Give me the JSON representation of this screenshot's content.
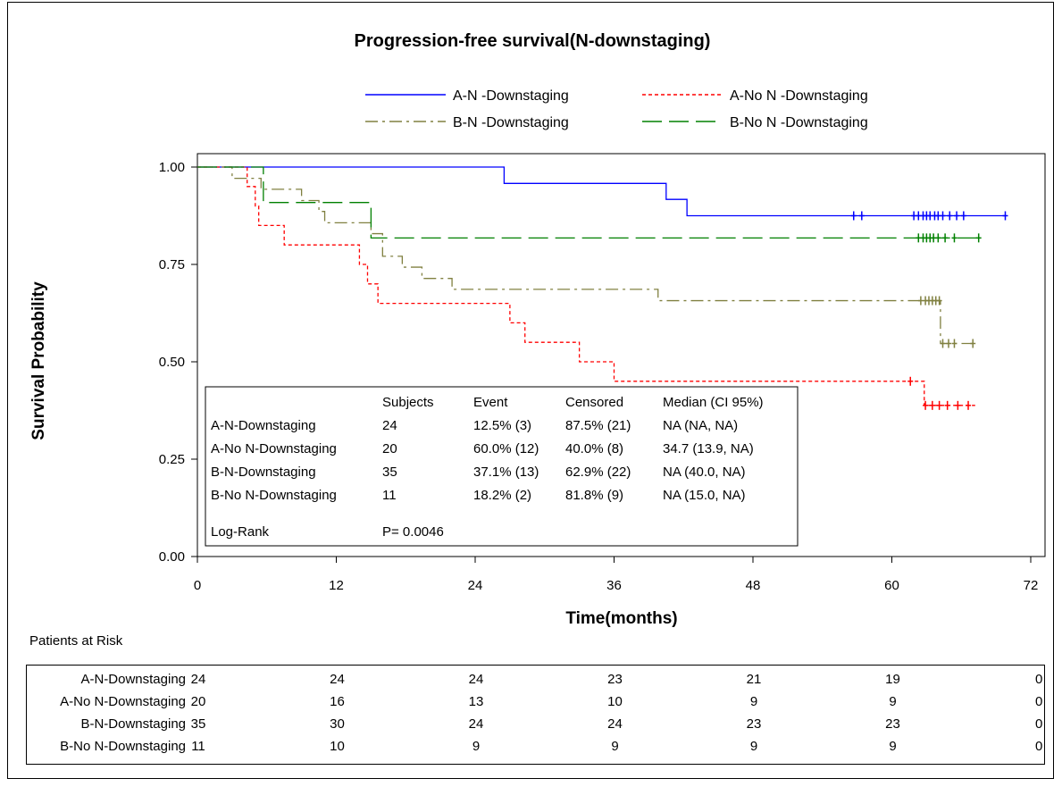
{
  "chart_data": {
    "type": "line",
    "title": "Progression-free survival(N-downstaging)",
    "xlabel": "Time(months)",
    "ylabel": "Survival Probability",
    "xlim": [
      0,
      72
    ],
    "ylim": [
      0,
      1
    ],
    "x_ticks": [
      "0",
      "12",
      "24",
      "36",
      "48",
      "60",
      "72"
    ],
    "y_ticks": [
      "0.00",
      "0.25",
      "0.50",
      "0.75",
      "1.00"
    ],
    "grid": false,
    "legend_position": "top",
    "series": [
      {
        "name": "A-N -Downstaging",
        "color": "#0000ff",
        "dash": "solid",
        "steps": [
          [
            0,
            1.0
          ],
          [
            26.5,
            0.958
          ],
          [
            40.5,
            0.917
          ],
          [
            42.3,
            0.875
          ]
        ],
        "end": 69.8,
        "censored": [
          [
            56.7,
            0.875
          ],
          [
            57.4,
            0.875
          ],
          [
            61.9,
            0.875
          ],
          [
            62.3,
            0.875
          ],
          [
            62.7,
            0.875
          ],
          [
            63.0,
            0.875
          ],
          [
            63.3,
            0.875
          ],
          [
            63.7,
            0.875
          ],
          [
            64.0,
            0.875
          ],
          [
            64.4,
            0.875
          ],
          [
            65.0,
            0.875
          ],
          [
            65.6,
            0.875
          ],
          [
            66.2,
            0.875
          ],
          [
            69.8,
            0.875
          ]
        ]
      },
      {
        "name": "A-No N -Downstaging",
        "color": "#ff0000",
        "dash": "short",
        "steps": [
          [
            0,
            1.0
          ],
          [
            4.3,
            0.95
          ],
          [
            5.0,
            0.9
          ],
          [
            5.3,
            0.85
          ],
          [
            7.5,
            0.8
          ],
          [
            14.0,
            0.75
          ],
          [
            14.7,
            0.7
          ],
          [
            15.6,
            0.65
          ],
          [
            27.0,
            0.6
          ],
          [
            28.3,
            0.55
          ],
          [
            33.0,
            0.5
          ],
          [
            36.0,
            0.45
          ],
          [
            62.8,
            0.388
          ]
        ],
        "end": 67.2,
        "censored": [
          [
            61.6,
            0.45
          ],
          [
            62.9,
            0.388
          ],
          [
            63.5,
            0.388
          ],
          [
            64.1,
            0.388
          ],
          [
            64.8,
            0.388
          ],
          [
            65.7,
            0.388
          ],
          [
            66.6,
            0.388
          ]
        ]
      },
      {
        "name": "B-N -Downstaging",
        "color": "#808040",
        "dash": "dashdot",
        "steps": [
          [
            0,
            1.0
          ],
          [
            3.0,
            0.971
          ],
          [
            5.5,
            0.943
          ],
          [
            9.0,
            0.914
          ],
          [
            10.5,
            0.886
          ],
          [
            11.0,
            0.857
          ],
          [
            15.0,
            0.829
          ],
          [
            16.0,
            0.771
          ],
          [
            17.7,
            0.743
          ],
          [
            19.4,
            0.714
          ],
          [
            22.0,
            0.686
          ],
          [
            39.8,
            0.657
          ],
          [
            64.2,
            0.547
          ]
        ],
        "end": 67.0,
        "censored": [
          [
            62.5,
            0.657
          ],
          [
            62.9,
            0.657
          ],
          [
            63.2,
            0.657
          ],
          [
            63.5,
            0.657
          ],
          [
            63.8,
            0.657
          ],
          [
            64.1,
            0.657
          ],
          [
            64.4,
            0.547
          ],
          [
            64.9,
            0.547
          ],
          [
            65.4,
            0.547
          ],
          [
            67.0,
            0.547
          ]
        ]
      },
      {
        "name": "B-No N -Downstaging",
        "color": "#008000",
        "dash": "long",
        "steps": [
          [
            0,
            1.0
          ],
          [
            5.7,
            0.909
          ],
          [
            15.0,
            0.818
          ]
        ],
        "end": 67.5,
        "censored": [
          [
            62.3,
            0.818
          ],
          [
            62.7,
            0.818
          ],
          [
            63.0,
            0.818
          ],
          [
            63.3,
            0.818
          ],
          [
            63.6,
            0.818
          ],
          [
            64.0,
            0.818
          ],
          [
            64.6,
            0.818
          ],
          [
            65.4,
            0.818
          ],
          [
            67.5,
            0.818
          ]
        ]
      }
    ],
    "inset_table": {
      "headers": [
        "",
        "Subjects",
        "Event",
        "Censored",
        "Median (CI 95%)"
      ],
      "rows": [
        [
          "A-N-Downstaging",
          "24",
          "12.5% (3)",
          "87.5% (21)",
          "NA (NA, NA)"
        ],
        [
          "A-No N-Downstaging",
          "20",
          "60.0% (12)",
          "40.0% (8)",
          "34.7 (13.9, NA)"
        ],
        [
          "B-N-Downstaging",
          "35",
          "37.1% (13)",
          "62.9% (22)",
          "NA (40.0, NA)"
        ],
        [
          "B-No N-Downstaging",
          "11",
          "18.2% (2)",
          "81.8% (9)",
          "NA (15.0, NA)"
        ]
      ],
      "logrank_label": "Log-Rank",
      "logrank_value": "P= 0.0046"
    },
    "risk_table": {
      "title": "Patients at Risk",
      "rows": [
        {
          "label": "A-N-Downstaging",
          "values": [
            "24",
            "24",
            "24",
            "23",
            "21",
            "19",
            "0"
          ]
        },
        {
          "label": "A-No N-Downstaging",
          "values": [
            "20",
            "16",
            "13",
            "10",
            "9",
            "9",
            "0"
          ]
        },
        {
          "label": "B-N-Downstaging",
          "values": [
            "35",
            "30",
            "24",
            "24",
            "23",
            "23",
            "0"
          ]
        },
        {
          "label": "B-No N-Downstaging",
          "values": [
            "11",
            "10",
            "9",
            "9",
            "9",
            "9",
            "0"
          ]
        }
      ]
    }
  }
}
